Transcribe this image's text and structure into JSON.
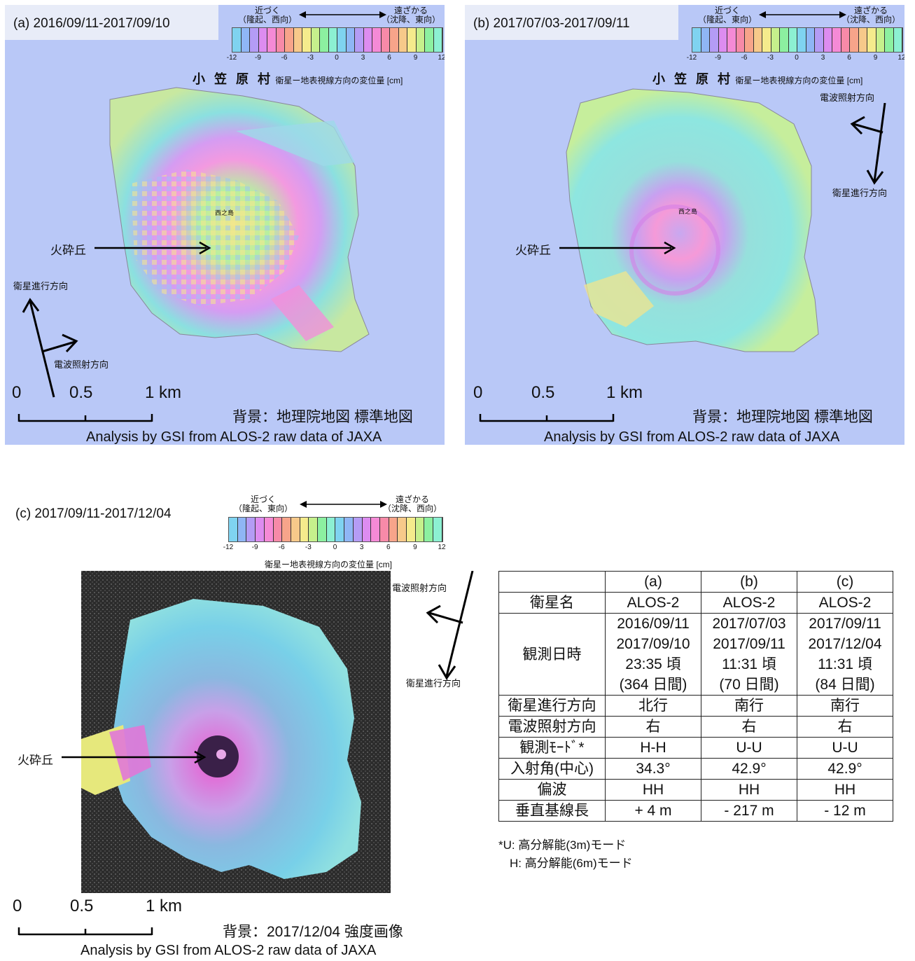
{
  "panels": {
    "a": {
      "title": "(a) 2016/09/11-2017/09/10",
      "village": "小 笠 原 村",
      "island_label": "西之島",
      "feature_label": "火砕丘",
      "heading_label": "衛星進行方向",
      "look_label": "電波照射方向",
      "scale": {
        "zero": "0",
        "half": "0.5",
        "one": "1 km"
      },
      "background": "背景：地理院地図  標準地図",
      "credit": "Analysis by GSI from ALOS-2 raw data of JAXA"
    },
    "b": {
      "title": "(b) 2017/07/03-2017/09/11",
      "village": "小 笠 原 村",
      "island_label": "西之島",
      "feature_label": "火砕丘",
      "heading_label": "衛星進行方向",
      "look_label": "電波照射方向",
      "scale": {
        "zero": "0",
        "half": "0.5",
        "one": "1 km"
      },
      "background": "背景：地理院地図  標準地図",
      "credit": "Analysis by GSI from ALOS-2 raw data of JAXA"
    },
    "c": {
      "title": "(c) 2017/09/11-2017/12/04",
      "feature_label": "火砕丘",
      "heading_label": "衛星進行方向",
      "look_label": "電波照射方向",
      "scale": {
        "zero": "0",
        "half": "0.5",
        "one": "1 km"
      },
      "background": "背景：2017/12/04 強度画像",
      "credit": "Analysis by GSI from ALOS-2 raw data of JAXA"
    }
  },
  "colorbars": {
    "a": {
      "near": "近づく",
      "near_sub": "（隆起、西向）",
      "far": "遠ざかる",
      "far_sub": "（沈降、東向）",
      "caption": "衛星ー地表視線方向の変位量 [cm]"
    },
    "b": {
      "near": "近づく",
      "near_sub": "（隆起、東向）",
      "far": "遠ざかる",
      "far_sub": "（沈降、西向）",
      "caption": "衛星ー地表視線方向の変位量 [cm]"
    },
    "c": {
      "near": "近づく",
      "near_sub": "（隆起、東向）",
      "far": "遠ざかる",
      "far_sub": "（沈降、西向）",
      "caption": "衛星ー地表視線方向の変位量 [cm]"
    }
  },
  "colorbar_ticks": [
    "-12",
    "-9",
    "-6",
    "-3",
    "0",
    "3",
    "6",
    "9",
    "12"
  ],
  "colorbar_colors": [
    "#7fd3f0",
    "#8fb6f5",
    "#b49cf5",
    "#dd8cf0",
    "#f58ad6",
    "#f78aa8",
    "#f7a48a",
    "#f7c98a",
    "#f5eb8c",
    "#c6f08c",
    "#8cf0a0",
    "#8cf0d2",
    "#7fd3f0",
    "#8fb6f5",
    "#b49cf5",
    "#dd8cf0",
    "#f58ad6",
    "#f78aa8",
    "#f7a48a",
    "#f7c98a",
    "#f5eb8c",
    "#c6f08c",
    "#8cf0a0",
    "#8cf0d2"
  ],
  "table": {
    "header": [
      "",
      "(a)",
      "(b)",
      "(c)"
    ],
    "rows": [
      {
        "label": "衛星名",
        "a": "ALOS-2",
        "b": "ALOS-2",
        "c": "ALOS-2"
      },
      {
        "label": "観測日時",
        "a": [
          "2016/09/11",
          "2017/09/10",
          "23:35 頃",
          "(364 日間)"
        ],
        "b": [
          "2017/07/03",
          "2017/09/11",
          "11:31 頃",
          "(70 日間)"
        ],
        "c": [
          "2017/09/11",
          "2017/12/04",
          "11:31 頃",
          "(84 日間)"
        ]
      },
      {
        "label": "衛星進行方向",
        "a": "北行",
        "b": "南行",
        "c": "南行"
      },
      {
        "label": "電波照射方向",
        "a": "右",
        "b": "右",
        "c": "右"
      },
      {
        "label": "観測ﾓｰﾄﾞ*",
        "a": "H-H",
        "b": "U-U",
        "c": "U-U"
      },
      {
        "label": "入射角(中心)",
        "a": "34.3°",
        "b": "42.9°",
        "c": "42.9°"
      },
      {
        "label": "偏波",
        "a": "HH",
        "b": "HH",
        "c": "HH"
      },
      {
        "label": "垂直基線長",
        "a": "+ 4 m",
        "b": "- 217 m",
        "c": "- 12 m"
      }
    ]
  },
  "notes": [
    "*U:  高分解能(3m)モード",
    "H:  高分解能(6m)モード"
  ]
}
